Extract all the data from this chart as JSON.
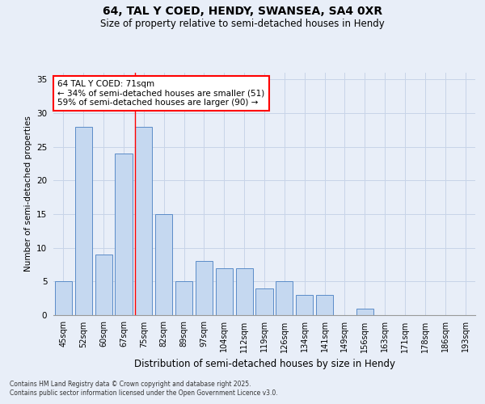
{
  "title_line1": "64, TAL Y COED, HENDY, SWANSEA, SA4 0XR",
  "title_line2": "Size of property relative to semi-detached houses in Hendy",
  "xlabel": "Distribution of semi-detached houses by size in Hendy",
  "ylabel": "Number of semi-detached properties",
  "categories": [
    "45sqm",
    "52sqm",
    "60sqm",
    "67sqm",
    "75sqm",
    "82sqm",
    "89sqm",
    "97sqm",
    "104sqm",
    "112sqm",
    "119sqm",
    "126sqm",
    "134sqm",
    "141sqm",
    "149sqm",
    "156sqm",
    "163sqm",
    "171sqm",
    "178sqm",
    "186sqm",
    "193sqm"
  ],
  "values": [
    5,
    28,
    9,
    24,
    28,
    15,
    5,
    8,
    7,
    7,
    4,
    5,
    3,
    3,
    0,
    1,
    0,
    0,
    0,
    0,
    0
  ],
  "bar_color": "#c5d8f0",
  "bar_edge_color": "#5b8cc8",
  "grid_color": "#c8d4e8",
  "background_color": "#e8eef8",
  "red_line_x": 3.55,
  "annotation_title": "64 TAL Y COED: 71sqm",
  "annotation_line1": "← 34% of semi-detached houses are smaller (51)",
  "annotation_line2": "59% of semi-detached houses are larger (90) →",
  "ylim": [
    0,
    36
  ],
  "yticks": [
    0,
    5,
    10,
    15,
    20,
    25,
    30,
    35
  ],
  "footnote1": "Contains HM Land Registry data © Crown copyright and database right 2025.",
  "footnote2": "Contains public sector information licensed under the Open Government Licence v3.0."
}
